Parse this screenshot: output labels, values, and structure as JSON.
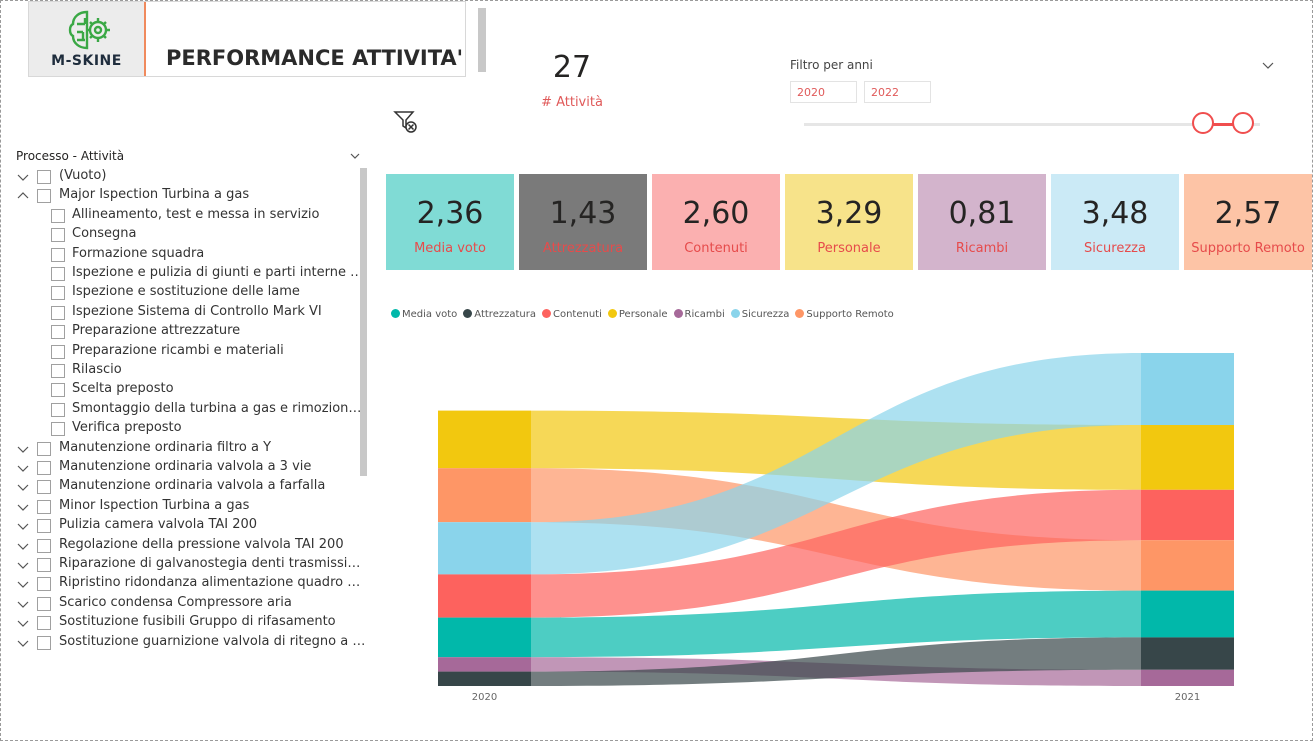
{
  "header": {
    "logo_text_main": "M-SKINE",
    "title": "PERFORMANCE ATTIVITA'"
  },
  "kpi": {
    "count_value": "27",
    "count_label": "# Attività"
  },
  "year_filter": {
    "title": "Filtro per anni",
    "from": "2020",
    "to": "2022",
    "range": [
      2020,
      2022
    ],
    "selected": [
      2020,
      2022
    ]
  },
  "slicer": {
    "title": "Processo - Attività",
    "items": [
      {
        "label": "(Vuoto)",
        "level": 0,
        "expanded": false
      },
      {
        "label": "Major Ispection Turbina a gas",
        "level": 0,
        "expanded": true
      },
      {
        "label": "Allineamento, test e messa in servizio",
        "level": 1
      },
      {
        "label": "Consegna",
        "level": 1
      },
      {
        "label": "Formazione squadra",
        "level": 1
      },
      {
        "label": "Ispezione e pulizia di giunti e parti interne della...",
        "level": 1
      },
      {
        "label": "Ispezione e sostituzione delle lame",
        "level": 1
      },
      {
        "label": "Ispezione Sistema di Controllo Mark VI",
        "level": 1
      },
      {
        "label": "Preparazione attrezzature",
        "level": 1
      },
      {
        "label": "Preparazione ricambi e materiali",
        "level": 1
      },
      {
        "label": "Rilascio",
        "level": 1
      },
      {
        "label": "Scelta preposto",
        "level": 1
      },
      {
        "label": "Smontaggio della turbina a gas e rimozione del...",
        "level": 1
      },
      {
        "label": "Verifica preposto",
        "level": 1
      },
      {
        "label": "Manutenzione ordinaria filtro a Y",
        "level": 0,
        "expanded": false
      },
      {
        "label": "Manutenzione ordinaria valvola a 3 vie",
        "level": 0,
        "expanded": false
      },
      {
        "label": "Manutenzione ordinaria valvola a farfalla",
        "level": 0,
        "expanded": false
      },
      {
        "label": "Minor Ispection Turbina a gas",
        "level": 0,
        "expanded": false
      },
      {
        "label": "Pulizia camera valvola TAI 200",
        "level": 0,
        "expanded": false
      },
      {
        "label": "Regolazione della pressione valvola TAI 200",
        "level": 0,
        "expanded": false
      },
      {
        "label": "Riparazione di galvanostegia denti trasmissione T...",
        "level": 0,
        "expanded": false
      },
      {
        "label": "Ripristino ridondanza alimentazione quadro ausili...",
        "level": 0,
        "expanded": false
      },
      {
        "label": "Scarico condensa Compressore aria",
        "level": 0,
        "expanded": false
      },
      {
        "label": "Sostituzione fusibili Gruppo di rifasamento",
        "level": 0,
        "expanded": false
      },
      {
        "label": "Sostituzione guarnizione valvola di ritegno a dop...",
        "level": 0,
        "expanded": false
      }
    ]
  },
  "cards": [
    {
      "value": "2,36",
      "label": "Media voto",
      "bg": "#80dbd5"
    },
    {
      "value": "1,43",
      "label": "Attrezzatura",
      "bg": "#7a7a7a"
    },
    {
      "value": "2,60",
      "label": "Contenuti",
      "bg": "#fbb0b0"
    },
    {
      "value": "3,29",
      "label": "Personale",
      "bg": "#f7e38a"
    },
    {
      "value": "0,81",
      "label": "Ricambi",
      "bg": "#d3b4cc"
    },
    {
      "value": "3,48",
      "label": "Sicurezza",
      "bg": "#cbeaf6"
    },
    {
      "value": "2,57",
      "label": "Supporto Remoto",
      "bg": "#fdc4a6"
    }
  ],
  "chart_data": {
    "type": "sankey",
    "years": [
      "2020",
      "2021"
    ],
    "series": [
      {
        "name": "Media voto",
        "color": "#01b8aa",
        "values": [
          2.2,
          2.6
        ]
      },
      {
        "name": "Attrezzatura",
        "color": "#374649",
        "values": [
          0.8,
          1.8
        ]
      },
      {
        "name": "Contenuti",
        "color": "#fd625e",
        "values": [
          2.4,
          2.8
        ]
      },
      {
        "name": "Personale",
        "color": "#f2c80f",
        "values": [
          3.2,
          3.6
        ]
      },
      {
        "name": "Ricambi",
        "color": "#a66999",
        "values": [
          0.8,
          0.9
        ]
      },
      {
        "name": "Sicurezza",
        "color": "#8ad4eb",
        "values": [
          2.9,
          4.0
        ]
      },
      {
        "name": "Supporto Remoto",
        "color": "#fe9666",
        "values": [
          3.0,
          2.8
        ]
      }
    ],
    "order_2020": [
      "Personale",
      "Supporto Remoto",
      "Sicurezza",
      "Contenuti",
      "Media voto",
      "Ricambi",
      "Attrezzatura"
    ],
    "order_2021": [
      "Sicurezza",
      "Personale",
      "Contenuti",
      "Supporto Remoto",
      "Media voto",
      "Attrezzatura",
      "Ricambi"
    ]
  }
}
